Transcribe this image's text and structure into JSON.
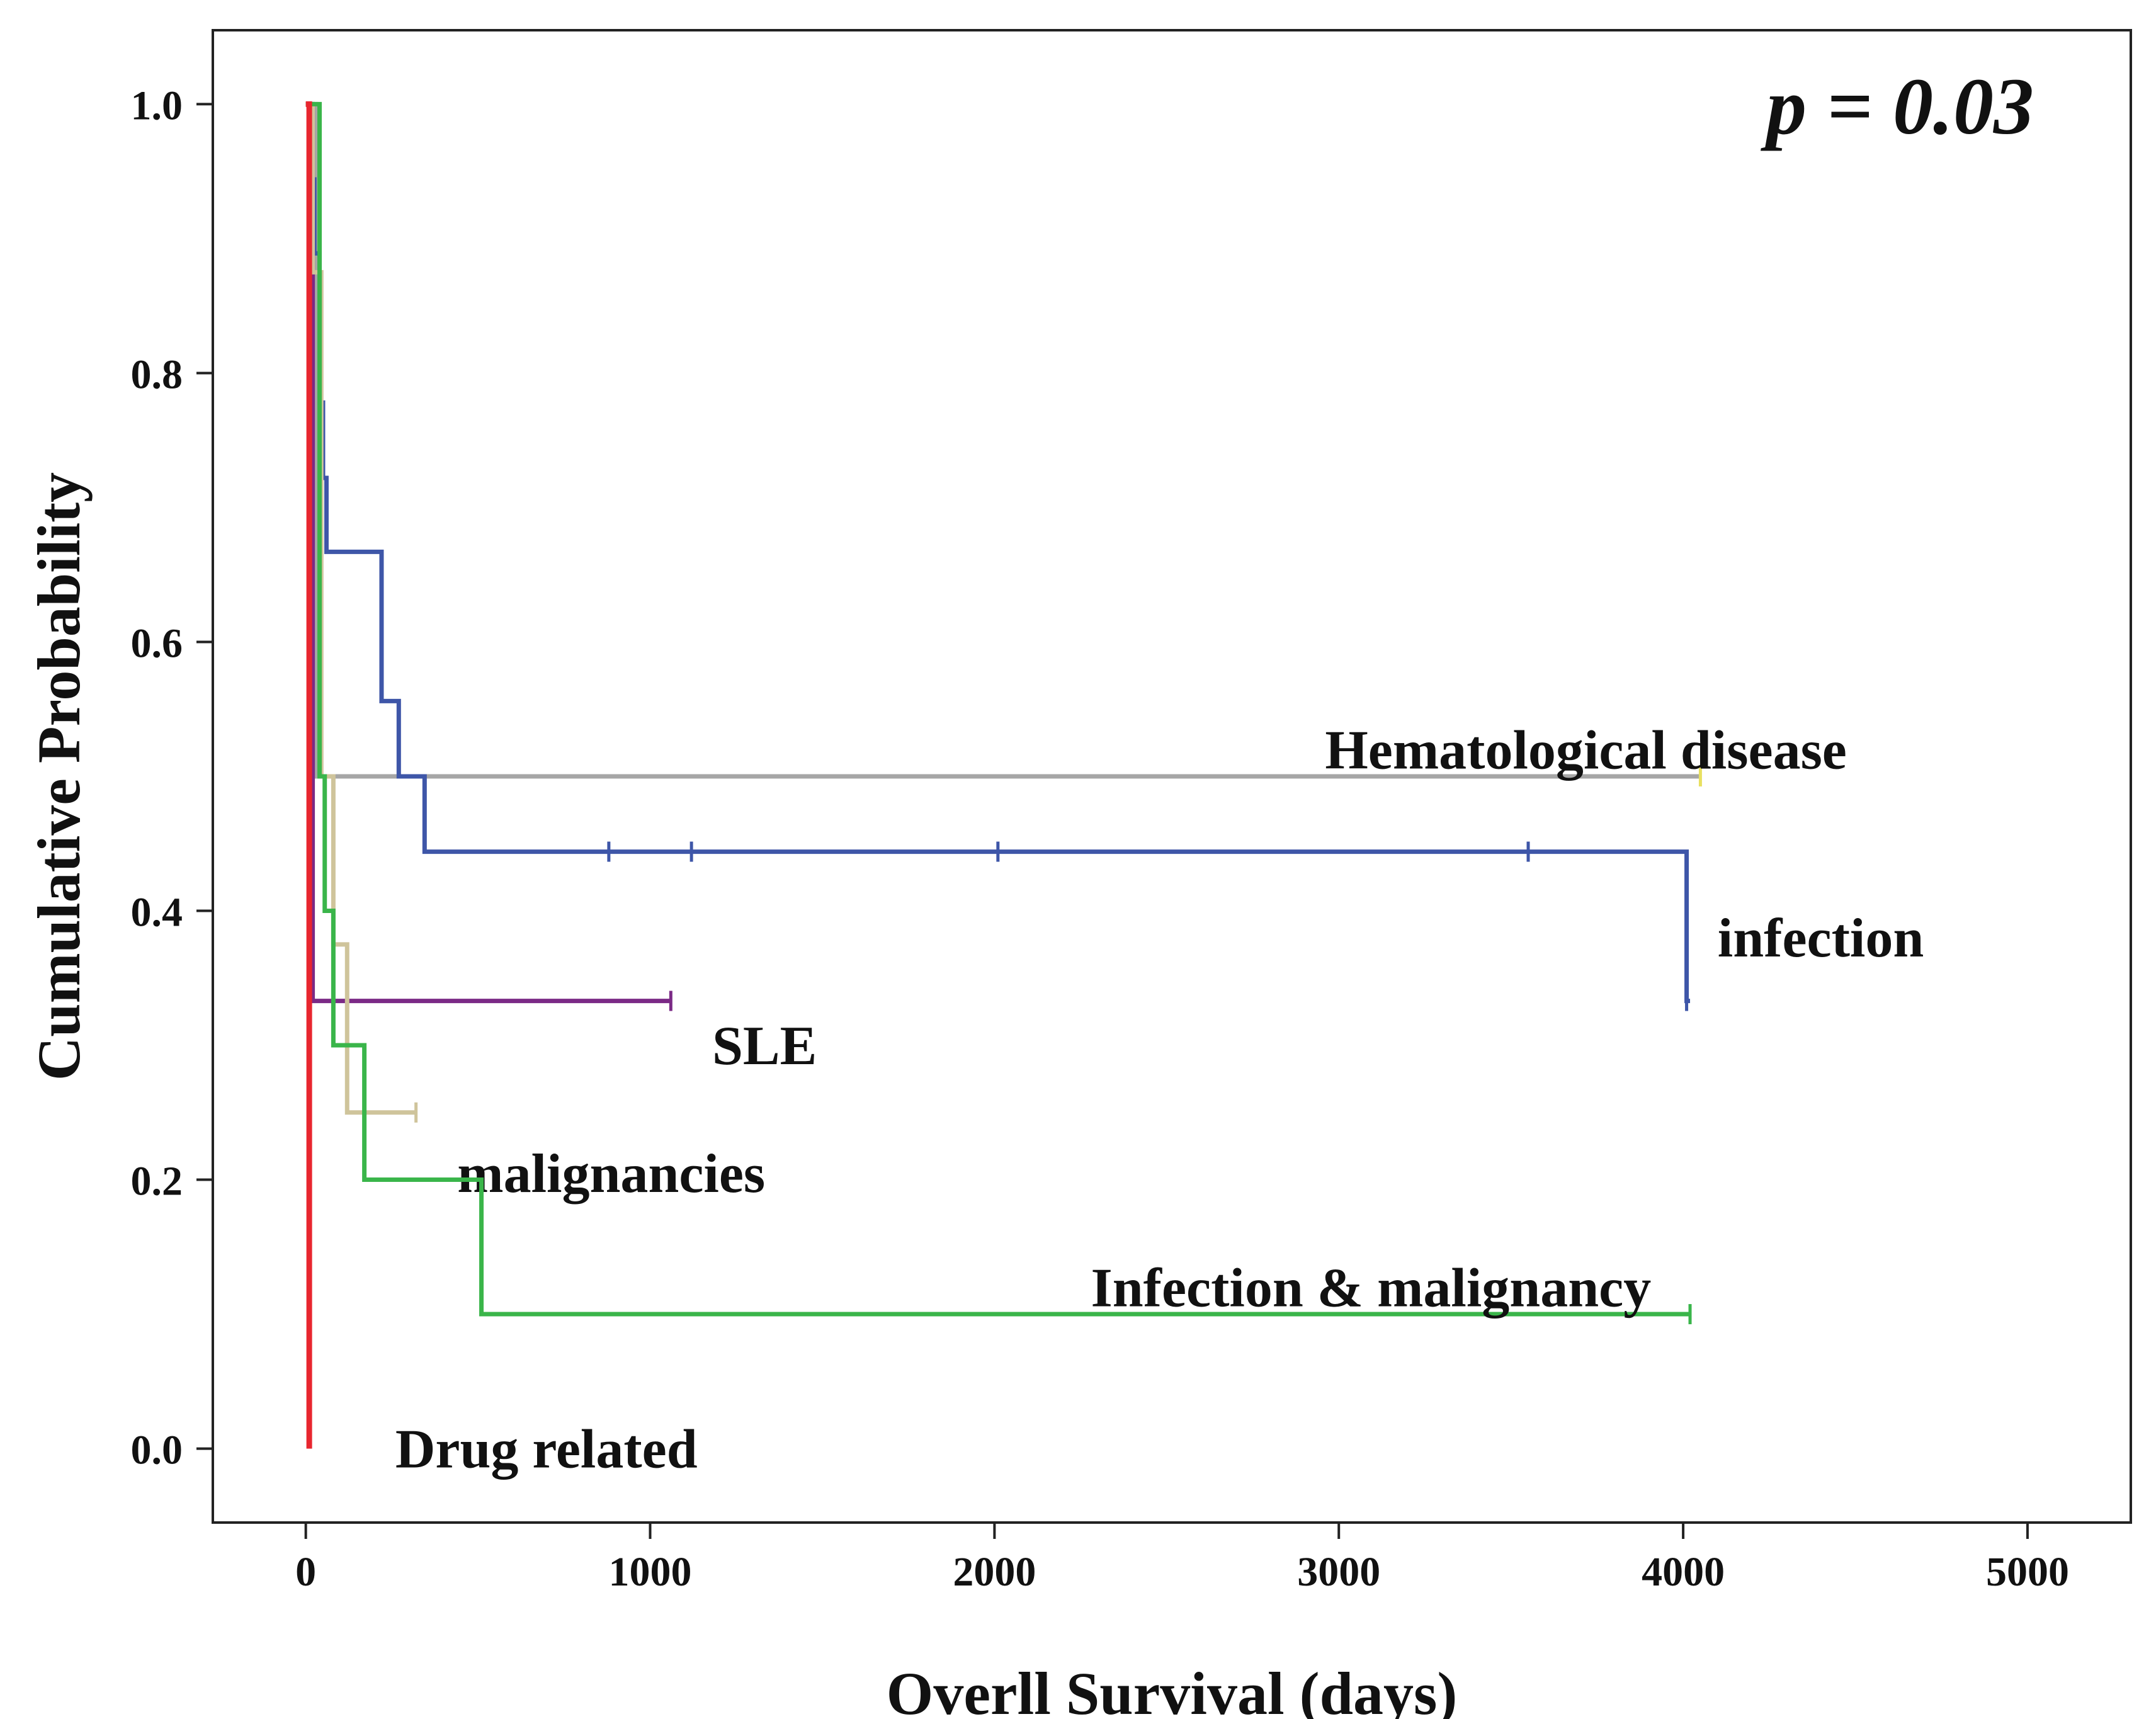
{
  "chart_data": {
    "type": "line",
    "subtype": "kaplan-meier",
    "xlabel": "Overll Survival (days)",
    "ylabel": "Cumulative Probability",
    "xlim": [
      -270,
      5300
    ],
    "ylim": [
      -0.055,
      1.055
    ],
    "xticks": [
      0,
      1000,
      2000,
      3000,
      4000,
      5000
    ],
    "xtick_labels": [
      "0",
      "1000",
      "2000",
      "3000",
      "4000",
      "5000"
    ],
    "yticks": [
      0.0,
      0.2,
      0.4,
      0.6,
      0.8,
      1.0
    ],
    "ytick_labels": [
      "0.0",
      "0.2",
      "0.4",
      "0.6",
      "0.8",
      "1.0"
    ],
    "annotation": "p = 0.03",
    "grid": false,
    "series": [
      {
        "name": "Hematological disease",
        "color": "#a6a6a6",
        "steps": [
          [
            0,
            1.0
          ],
          [
            30,
            0.5
          ],
          [
            4050,
            0.5
          ]
        ],
        "censored": [
          [
            4050,
            0.5
          ]
        ],
        "censor_color": "#e8e060",
        "label_at": [
          2960,
          0.52
        ]
      },
      {
        "name": "infection",
        "color": "#3e56a8",
        "steps": [
          [
            0,
            1.0
          ],
          [
            15,
            0.944
          ],
          [
            25,
            0.889
          ],
          [
            40,
            0.778
          ],
          [
            50,
            0.722
          ],
          [
            60,
            0.667
          ],
          [
            220,
            0.556
          ],
          [
            270,
            0.5
          ],
          [
            345,
            0.444
          ],
          [
            4010,
            0.333
          ],
          [
            4020,
            0.333
          ]
        ],
        "censored": [
          [
            880,
            0.444
          ],
          [
            1120,
            0.444
          ],
          [
            2010,
            0.444
          ],
          [
            3550,
            0.444
          ],
          [
            4010,
            0.333
          ]
        ],
        "label_at": [
          4100,
          0.38
        ]
      },
      {
        "name": "SLE",
        "color": "#7b2a86",
        "steps": [
          [
            0,
            1.0
          ],
          [
            20,
            0.333
          ],
          [
            1060,
            0.333
          ]
        ],
        "censored": [
          [
            1060,
            0.333
          ]
        ],
        "label_at": [
          1180,
          0.3
        ]
      },
      {
        "name": "malignancies",
        "color": "#cfc49b",
        "steps": [
          [
            0,
            1.0
          ],
          [
            20,
            0.875
          ],
          [
            45,
            0.5
          ],
          [
            80,
            0.375
          ],
          [
            120,
            0.25
          ],
          [
            320,
            0.25
          ]
        ],
        "censored": [
          [
            320,
            0.25
          ]
        ],
        "label_at": [
          440,
          0.205
        ]
      },
      {
        "name": "Infection & malignancy",
        "color": "#3ab54a",
        "steps": [
          [
            0,
            1.0
          ],
          [
            40,
            0.5
          ],
          [
            55,
            0.4
          ],
          [
            80,
            0.3
          ],
          [
            170,
            0.2
          ],
          [
            510,
            0.1
          ],
          [
            4020,
            0.1
          ]
        ],
        "censored": [
          [
            4020,
            0.1
          ]
        ],
        "label_at": [
          2280,
          0.12
        ]
      },
      {
        "name": "Drug related",
        "color": "#e8262f",
        "steps": [
          [
            0,
            1.0
          ],
          [
            10,
            0.0
          ]
        ],
        "censored": [],
        "label_at": [
          260,
          0.0
        ]
      }
    ]
  }
}
